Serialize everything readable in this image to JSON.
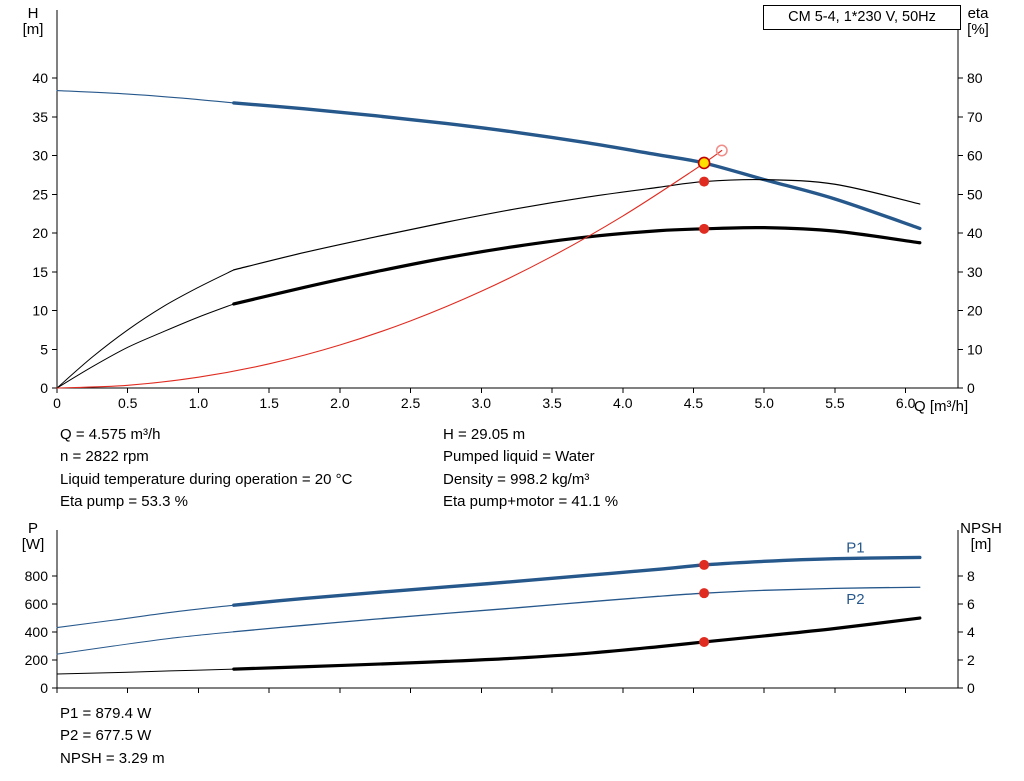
{
  "title_box": "CM 5-4, 1*230 V, 50Hz",
  "info_top": {
    "left": [
      "Q = 4.575 m³/h",
      "n = 2822 rpm",
      "Liquid temperature during operation = 20 °C",
      "Eta pump = 53.3 %"
    ],
    "right": [
      "H = 29.05 m",
      "Pumped liquid = Water",
      "Density = 998.2 kg/m³",
      "Eta pump+motor = 41.1 %"
    ]
  },
  "info_bottom": [
    "P1 = 879.4 W",
    "P2 = 677.5 W",
    "NPSH = 3.29 m"
  ],
  "colors": {
    "curve_blue": "#27588c",
    "curve_black": "#000000",
    "curve_red": "#e02b20",
    "marker_yellow": "#ffe000",
    "marker_red": "#e02b20",
    "open_circle_red": "#f08e8a"
  },
  "chart_data": [
    {
      "type": "line",
      "title": "CM 5-4, 1*230 V, 50Hz",
      "x_axis": {
        "label": "Q [m³/h]",
        "lim": [
          0,
          6.37
        ],
        "ticks": [
          0,
          0.5,
          1,
          1.5,
          2,
          2.5,
          3,
          3.5,
          4,
          4.5,
          5,
          5.5,
          6
        ],
        "tick_labels": [
          "0",
          "0.5",
          "1.0",
          "1.5",
          "2.0",
          "2.5",
          "3.0",
          "3.5",
          "4.0",
          "4.5",
          "5.0",
          "5.5",
          "6.0"
        ]
      },
      "y_left": {
        "label": "H [m]",
        "label_lines": [
          "H",
          "[m]"
        ],
        "lim": [
          0,
          48.8
        ],
        "ticks": [
          0,
          5,
          10,
          15,
          20,
          25,
          30,
          35,
          40
        ],
        "tick_labels": [
          "0",
          "5",
          "10",
          "15",
          "20",
          "25",
          "30",
          "35",
          "40"
        ]
      },
      "y_right": {
        "label": "eta [%]",
        "label_lines": [
          "eta",
          "[%]"
        ],
        "lim": [
          0,
          97.6
        ],
        "ticks": [
          0,
          10,
          20,
          30,
          40,
          50,
          60,
          70,
          80
        ],
        "tick_labels": [
          "0",
          "10",
          "20",
          "30",
          "40",
          "50",
          "60",
          "70",
          "80"
        ]
      },
      "series": [
        {
          "name": "head-curve-lowflow",
          "axis": "left",
          "color": "#27588c",
          "width": 1.1,
          "points": [
            [
              0,
              38.4
            ],
            [
              0.5,
              37.95
            ],
            [
              0.9,
              37.4
            ],
            [
              1.25,
              36.8
            ]
          ]
        },
        {
          "name": "head-curve",
          "axis": "left",
          "color": "#27588c",
          "width": 3.4,
          "points": [
            [
              1.25,
              36.8
            ],
            [
              1.75,
              36.05
            ],
            [
              2.25,
              35.15
            ],
            [
              2.75,
              34.15
            ],
            [
              3.25,
              33.0
            ],
            [
              3.75,
              31.65
            ],
            [
              4.25,
              30.1
            ],
            [
              4.575,
              29.05
            ],
            [
              5.0,
              26.9
            ],
            [
              5.5,
              24.4
            ],
            [
              6.1,
              20.6
            ]
          ]
        },
        {
          "name": "eta-pump-lowflow",
          "axis": "right",
          "color": "#000000",
          "width": 1.0,
          "points": [
            [
              0,
              0
            ],
            [
              0.25,
              8
            ],
            [
              0.5,
              15
            ],
            [
              0.75,
              21
            ],
            [
              1.0,
              26
            ],
            [
              1.25,
              30.5
            ]
          ]
        },
        {
          "name": "eta-pump-curve",
          "axis": "right",
          "color": "#000000",
          "width": 1.2,
          "points": [
            [
              1.25,
              30.5
            ],
            [
              1.75,
              35.0
            ],
            [
              2.25,
              39.0
            ],
            [
              2.75,
              42.8
            ],
            [
              3.25,
              46.3
            ],
            [
              3.75,
              49.3
            ],
            [
              4.25,
              51.8
            ],
            [
              4.575,
              53.3
            ],
            [
              5.0,
              53.8
            ],
            [
              5.5,
              52.6
            ],
            [
              6.1,
              47.5
            ]
          ]
        },
        {
          "name": "eta-pump-motor-lowflow",
          "axis": "right",
          "color": "#000000",
          "width": 1.0,
          "points": [
            [
              0,
              0
            ],
            [
              0.25,
              5.5
            ],
            [
              0.5,
              10.5
            ],
            [
              0.75,
              14.5
            ],
            [
              1.0,
              18.3
            ],
            [
              1.25,
              21.7
            ]
          ]
        },
        {
          "name": "eta-pump-motor-curve",
          "axis": "right",
          "color": "#000000",
          "width": 3.2,
          "points": [
            [
              1.25,
              21.7
            ],
            [
              1.75,
              26.0
            ],
            [
              2.25,
              30.0
            ],
            [
              2.75,
              33.6
            ],
            [
              3.25,
              36.6
            ],
            [
              3.75,
              39.0
            ],
            [
              4.25,
              40.6
            ],
            [
              4.575,
              41.1
            ],
            [
              5.0,
              41.4
            ],
            [
              5.5,
              40.5
            ],
            [
              6.1,
              37.5
            ]
          ]
        },
        {
          "name": "system-curve",
          "axis": "left",
          "color": "#e02b20",
          "width": 1.1,
          "points": [
            [
              0,
              0
            ],
            [
              0.5,
              0.35
            ],
            [
              1.0,
              1.39
            ],
            [
              1.5,
              3.12
            ],
            [
              2.0,
              5.55
            ],
            [
              2.5,
              8.67
            ],
            [
              3.0,
              12.49
            ],
            [
              3.5,
              17.0
            ],
            [
              4.0,
              22.2
            ],
            [
              4.5,
              28.1
            ],
            [
              4.7,
              30.66
            ]
          ]
        }
      ],
      "markers": [
        {
          "name": "unclipped-duty-point-circle",
          "axis": "left",
          "x": 4.7,
          "y": 30.66,
          "r": 5.2,
          "fill": "none",
          "stroke": "#f08e8a",
          "stroke_width": 1.5
        },
        {
          "name": "duty-point-head",
          "axis": "left",
          "x": 4.575,
          "y": 29.05,
          "r": 5.5,
          "fill": "#ffe000",
          "stroke": "#c00000",
          "stroke_width": 1.6
        },
        {
          "name": "duty-point-eta-pump",
          "axis": "right",
          "x": 4.575,
          "y": 53.3,
          "r": 5,
          "fill": "#e02b20",
          "stroke": "none",
          "stroke_width": 0
        },
        {
          "name": "duty-point-eta-pump-motor",
          "axis": "right",
          "x": 4.575,
          "y": 41.1,
          "r": 5,
          "fill": "#e02b20",
          "stroke": "none",
          "stroke_width": 0
        }
      ],
      "annotations": []
    },
    {
      "type": "line",
      "title": "",
      "x_axis": {
        "label": "",
        "lim": [
          0,
          6.37
        ],
        "ticks": [
          0,
          0.5,
          1,
          1.5,
          2,
          2.5,
          3,
          3.5,
          4,
          4.5,
          5,
          5.5,
          6
        ],
        "tick_labels": []
      },
      "y_left": {
        "label": "P [W]",
        "label_lines": [
          "P",
          "[W]"
        ],
        "lim": [
          0,
          1129
        ],
        "ticks": [
          0,
          200,
          400,
          600,
          800
        ],
        "tick_labels": [
          "0",
          "200",
          "400",
          "600",
          "800"
        ]
      },
      "y_right": {
        "label": "NPSH [m]",
        "label_lines": [
          "NPSH",
          "[m]"
        ],
        "lim": [
          0,
          11.29
        ],
        "ticks": [
          0,
          2,
          4,
          6,
          8
        ],
        "tick_labels": [
          "0",
          "2",
          "4",
          "6",
          "8"
        ]
      },
      "series": [
        {
          "name": "p1-curve-lowflow",
          "axis": "left",
          "color": "#27588c",
          "width": 1.1,
          "points": [
            [
              0,
              432
            ],
            [
              0.4,
              485
            ],
            [
              0.8,
              540
            ],
            [
              1.25,
              592
            ]
          ]
        },
        {
          "name": "p1-curve",
          "axis": "left",
          "color": "#27588c",
          "width": 3.4,
          "points": [
            [
              1.25,
              592
            ],
            [
              1.75,
              640
            ],
            [
              2.25,
              682
            ],
            [
              2.75,
              722
            ],
            [
              3.25,
              762
            ],
            [
              3.75,
              805
            ],
            [
              4.25,
              848
            ],
            [
              4.575,
              879.4
            ],
            [
              5.0,
              905
            ],
            [
              5.5,
              924
            ],
            [
              6.1,
              933
            ]
          ]
        },
        {
          "name": "p2-curve-lowflow",
          "axis": "left",
          "color": "#27588c",
          "width": 1.0,
          "points": [
            [
              0,
              242
            ],
            [
              0.4,
              300
            ],
            [
              0.8,
              355
            ],
            [
              1.25,
              402
            ]
          ]
        },
        {
          "name": "p2-curve",
          "axis": "left",
          "color": "#27588c",
          "width": 1.3,
          "points": [
            [
              1.25,
              402
            ],
            [
              1.75,
              448
            ],
            [
              2.25,
              492
            ],
            [
              2.75,
              533
            ],
            [
              3.25,
              573
            ],
            [
              3.75,
              615
            ],
            [
              4.25,
              655
            ],
            [
              4.575,
              677.5
            ],
            [
              5.0,
              698
            ],
            [
              5.5,
              712
            ],
            [
              6.1,
              720
            ]
          ]
        },
        {
          "name": "npsh-curve-lowflow",
          "axis": "right",
          "color": "#000000",
          "width": 1.0,
          "points": [
            [
              0,
              1.0
            ],
            [
              0.4,
              1.1
            ],
            [
              0.8,
              1.22
            ],
            [
              1.25,
              1.35
            ]
          ]
        },
        {
          "name": "npsh-curve",
          "axis": "right",
          "color": "#000000",
          "width": 3.2,
          "points": [
            [
              1.25,
              1.35
            ],
            [
              1.75,
              1.52
            ],
            [
              2.25,
              1.7
            ],
            [
              2.75,
              1.9
            ],
            [
              3.25,
              2.14
            ],
            [
              3.75,
              2.48
            ],
            [
              4.25,
              2.95
            ],
            [
              4.575,
              3.29
            ],
            [
              5.0,
              3.72
            ],
            [
              5.5,
              4.25
            ],
            [
              6.1,
              5.0
            ]
          ]
        }
      ],
      "markers": [
        {
          "name": "duty-point-p1",
          "axis": "left",
          "x": 4.575,
          "y": 879.4,
          "r": 5,
          "fill": "#e02b20",
          "stroke": "none",
          "stroke_width": 0
        },
        {
          "name": "duty-point-p2",
          "axis": "left",
          "x": 4.575,
          "y": 677.5,
          "r": 5,
          "fill": "#e02b20",
          "stroke": "none",
          "stroke_width": 0
        },
        {
          "name": "duty-point-npsh",
          "axis": "right",
          "x": 4.575,
          "y": 3.29,
          "r": 5,
          "fill": "#e02b20",
          "stroke": "none",
          "stroke_width": 0
        }
      ],
      "annotations": [
        {
          "name": "p1-series-label",
          "text": "P1",
          "axis": "left",
          "x": 5.58,
          "y": 970,
          "color": "#27588c"
        },
        {
          "name": "p2-series-label",
          "text": "P2",
          "axis": "left",
          "x": 5.58,
          "y": 600,
          "color": "#27588c"
        }
      ]
    }
  ]
}
